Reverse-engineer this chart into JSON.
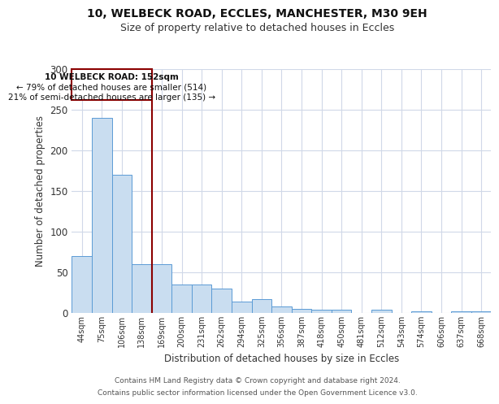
{
  "title1": "10, WELBECK ROAD, ECCLES, MANCHESTER, M30 9EH",
  "title2": "Size of property relative to detached houses in Eccles",
  "xlabel": "Distribution of detached houses by size in Eccles",
  "ylabel": "Number of detached properties",
  "categories": [
    "44sqm",
    "75sqm",
    "106sqm",
    "138sqm",
    "169sqm",
    "200sqm",
    "231sqm",
    "262sqm",
    "294sqm",
    "325sqm",
    "356sqm",
    "387sqm",
    "418sqm",
    "450sqm",
    "481sqm",
    "512sqm",
    "543sqm",
    "574sqm",
    "606sqm",
    "637sqm",
    "668sqm"
  ],
  "values": [
    70,
    240,
    170,
    60,
    60,
    35,
    35,
    30,
    14,
    17,
    8,
    5,
    4,
    4,
    0,
    4,
    0,
    2,
    0,
    2,
    2
  ],
  "bar_color": "#c9ddf0",
  "bar_edge_color": "#5b9bd5",
  "vline_color": "#8b0000",
  "annotation_title": "10 WELBECK ROAD: 152sqm",
  "annotation_line2": "← 79% of detached houses are smaller (514)",
  "annotation_line3": "21% of semi-detached houses are larger (135) →",
  "annotation_box_color": "#8b0000",
  "ylim": [
    0,
    300
  ],
  "yticks": [
    0,
    50,
    100,
    150,
    200,
    250,
    300
  ],
  "footer1": "Contains HM Land Registry data © Crown copyright and database right 2024.",
  "footer2": "Contains public sector information licensed under the Open Government Licence v3.0.",
  "background_color": "#ffffff",
  "grid_color": "#d0d8e8",
  "vline_bar_index": 3.5
}
